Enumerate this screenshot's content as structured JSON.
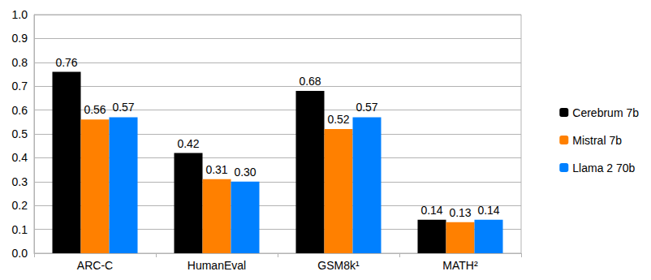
{
  "chart_data": {
    "type": "bar",
    "categories": [
      "ARC-C",
      "HumanEval",
      "GSM8k¹",
      "MATH²"
    ],
    "series": [
      {
        "name": "Cerebrum 7b",
        "color": "#000000",
        "values": [
          0.76,
          0.42,
          0.68,
          0.14
        ],
        "value_labels": [
          "0.76",
          "0.42",
          "0.68",
          "0.14"
        ]
      },
      {
        "name": "Mistral 7b",
        "color": "#ff8000",
        "values": [
          0.56,
          0.31,
          0.52,
          0.13
        ],
        "value_labels": [
          "0.56",
          "0.31",
          "0.52",
          "0.13"
        ]
      },
      {
        "name": "Llama 2 70b",
        "color": "#0080ff",
        "values": [
          0.57,
          0.3,
          0.57,
          0.14
        ],
        "value_labels": [
          "0.57",
          "0.30",
          "0.57",
          "0.14"
        ]
      }
    ],
    "ylim": [
      0,
      1
    ],
    "yticks": [
      {
        "value": 0,
        "label": "0.0"
      },
      0.1,
      0.2,
      0.3,
      0.4,
      0.5,
      0.6,
      0.7,
      0.8,
      0.9,
      {
        "value": 1,
        "label": "1.0"
      }
    ],
    "grid": true,
    "legend": "right",
    "data_labels": true
  }
}
